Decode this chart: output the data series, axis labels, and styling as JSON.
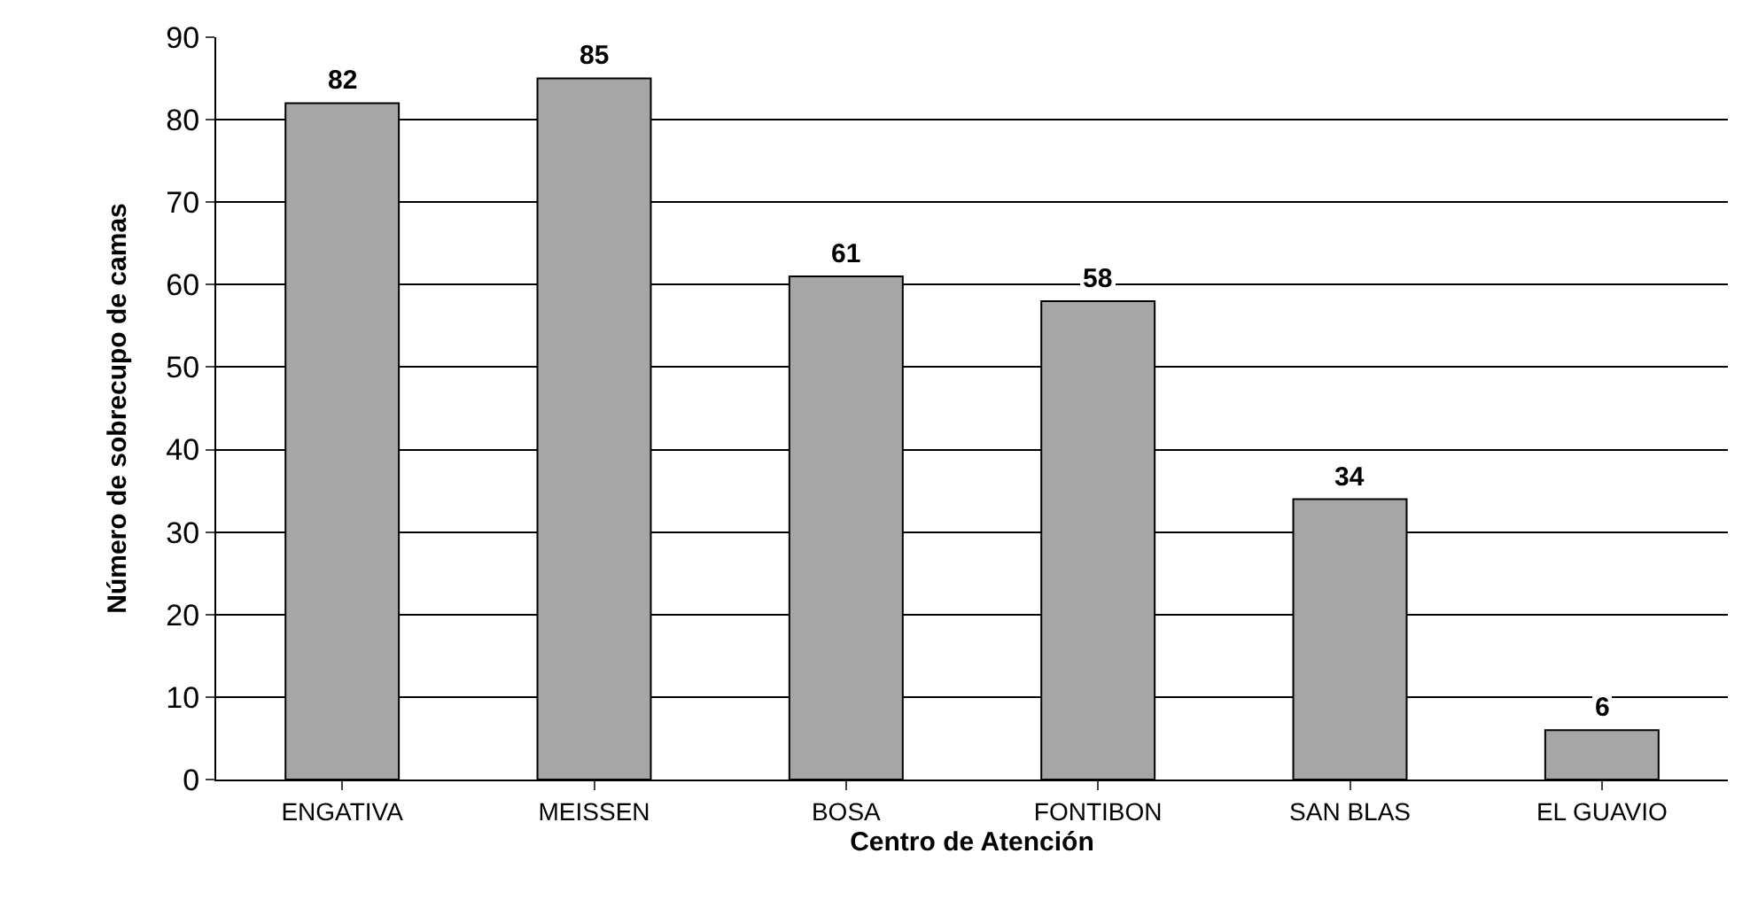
{
  "chart_data": {
    "type": "bar",
    "xlabel": "Centro de Atención",
    "ylabel": "Número de sobrecupo de camas",
    "categories": [
      "ENGATIVA",
      "MEISSEN",
      "BOSA",
      "FONTIBON",
      "SAN BLAS",
      "EL GUAVIO"
    ],
    "values": [
      82,
      85,
      61,
      58,
      34,
      6
    ],
    "color": "#a6a6a6",
    "ylim": [
      0,
      90
    ],
    "yticks": [
      0,
      10,
      20,
      30,
      40,
      50,
      60,
      70,
      80,
      90
    ],
    "grid": "y",
    "data_labels": true
  }
}
